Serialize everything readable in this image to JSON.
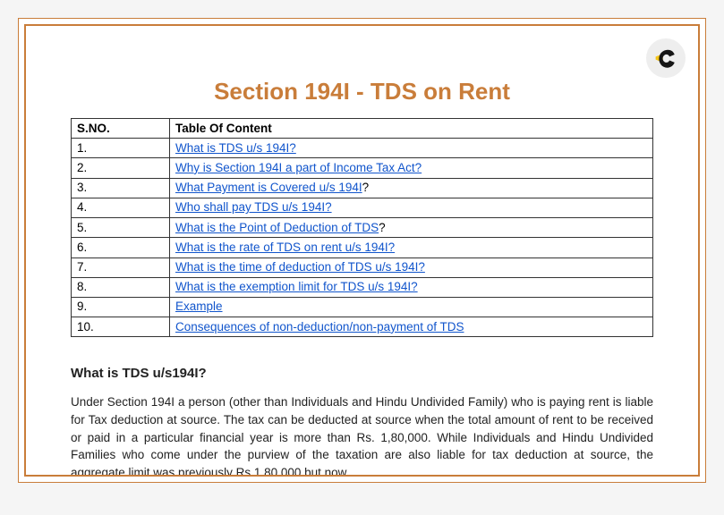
{
  "colors": {
    "border": "#c97d3a",
    "title": "#c97d3a",
    "link": "#1155cc",
    "text": "#222222",
    "page_bg": "#ffffff",
    "outer_bg": "#f5f5f5",
    "logo_bg": "#eeeeee",
    "logo_black": "#151515",
    "logo_yellow": "#f5c518"
  },
  "title": "Section 194I - TDS on Rent",
  "toc": {
    "headers": [
      "S.NO.",
      "Table Of Content"
    ],
    "rows": [
      {
        "sno": "1.",
        "text": "What is TDS u/s 194I?",
        "trailing_black_q": false
      },
      {
        "sno": "2.",
        "text": "Why is Section 194I a part of Income Tax Act?",
        "trailing_black_q": false
      },
      {
        "sno": "3.",
        "text": "What Payment is Covered u/s 194I",
        "trailing_black_q": true
      },
      {
        "sno": "4.",
        "text": "Who shall pay TDS u/s 194I?",
        "trailing_black_q": false
      },
      {
        "sno": "5.",
        "text": "What is the Point of Deduction of TDS",
        "trailing_black_q": true
      },
      {
        "sno": "6.",
        "text": "What is the rate of TDS on rent u/s 194I?",
        "trailing_black_q": false
      },
      {
        "sno": "7.",
        "text": "What is the time of deduction of TDS u/s 194I?",
        "trailing_black_q": false
      },
      {
        "sno": "8.",
        "text": "What is the exemption limit for TDS u/s 194I?",
        "trailing_black_q": false
      },
      {
        "sno": "9.",
        "text": "Example",
        "trailing_black_q": false
      },
      {
        "sno": "10.",
        "text": "Consequences of non-deduction/non-payment of TDS",
        "trailing_black_q": false
      }
    ]
  },
  "section1": {
    "heading": "What is TDS u/s194I?",
    "body": "Under Section 194I a person (other than Individuals and Hindu Undivided Family) who is paying rent is liable for Tax deduction at source. The tax can be deducted at source when the total amount of rent to be received or paid in a particular financial year is more than Rs. 1,80,000. While Individuals and Hindu Undivided Families who come under the purview of the taxation are also liable for tax deduction at source, the aggregate limit was previously Rs.1,80,000 but now"
  }
}
